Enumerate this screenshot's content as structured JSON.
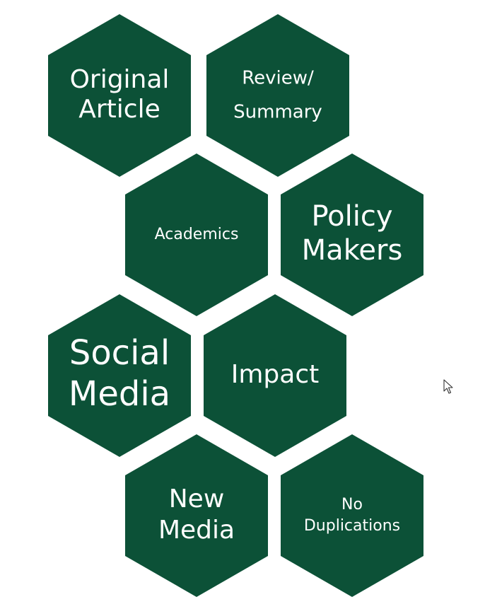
{
  "hexagons": [
    {
      "id": "original-article",
      "lines": [
        "Original",
        "Article"
      ]
    },
    {
      "id": "review-summary",
      "lines": [
        "Review/",
        "Summary"
      ]
    },
    {
      "id": "academics",
      "lines": [
        "Academics"
      ]
    },
    {
      "id": "policy-makers",
      "lines": [
        "Policy",
        "Makers"
      ]
    },
    {
      "id": "social-media",
      "lines": [
        "Social",
        "Media"
      ]
    },
    {
      "id": "impact",
      "lines": [
        "Impact"
      ]
    },
    {
      "id": "new-media",
      "lines": [
        "New",
        "Media"
      ]
    },
    {
      "id": "no-duplications",
      "lines": [
        "No",
        "Duplications"
      ]
    }
  ],
  "colors": {
    "hex_fill": "#0c5137",
    "text": "#ffffff",
    "background": "#ffffff"
  },
  "icons": {
    "cursor": "mouse-pointer-icon"
  }
}
